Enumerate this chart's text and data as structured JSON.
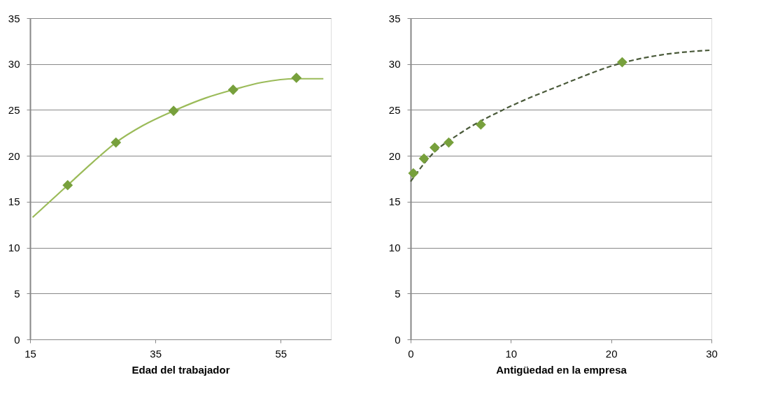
{
  "chart_data": [
    {
      "type": "scatter",
      "xlabel": "Edad del trabajador",
      "xlim": [
        15,
        63
      ],
      "xticks": [
        15,
        35,
        55
      ],
      "ylim": [
        0,
        35
      ],
      "yticks": [
        0,
        5,
        10,
        15,
        20,
        25,
        30,
        35
      ],
      "grid": "y",
      "series": [
        {
          "type": "line",
          "color": "#9bbb59",
          "line_style": "solid",
          "marker": "none",
          "x": [
            15.4,
            21,
            25,
            28.7,
            33,
            37.9,
            43,
            47.4,
            52,
            57.5,
            61.8
          ],
          "values": [
            13.3,
            16.8,
            19.3,
            21.45,
            23.3,
            24.9,
            26.3,
            27.2,
            28.0,
            28.4,
            28.4
          ]
        },
        {
          "color": "#77a03c",
          "marker": "diamond",
          "x": [
            21.0,
            28.7,
            37.9,
            47.4,
            57.5
          ],
          "values": [
            16.8,
            21.45,
            24.9,
            27.2,
            28.5
          ]
        }
      ]
    },
    {
      "type": "scatter",
      "xlabel": "Antigüedad en la empresa",
      "xlim": [
        0,
        30
      ],
      "xticks": [
        0,
        10,
        20,
        30
      ],
      "ylim": [
        0,
        35
      ],
      "yticks": [
        0,
        5,
        10,
        15,
        20,
        25,
        30,
        35
      ],
      "grid": "y",
      "series": [
        {
          "type": "line",
          "color": "#4a5a3a",
          "line_style": "dashed",
          "marker": "none",
          "x": [
            0,
            2,
            5,
            9.2,
            15,
            21,
            25,
            29.8
          ],
          "values": [
            17.2,
            20.0,
            22.5,
            25.0,
            27.7,
            30.1,
            31.0,
            31.5
          ]
        },
        {
          "color": "#77a03c",
          "marker": "diamond",
          "x": [
            0.27,
            1.33,
            2.4,
            3.8,
            7.0,
            21.1
          ],
          "values": [
            18.1,
            19.7,
            20.9,
            21.45,
            23.4,
            30.2
          ]
        }
      ]
    }
  ]
}
